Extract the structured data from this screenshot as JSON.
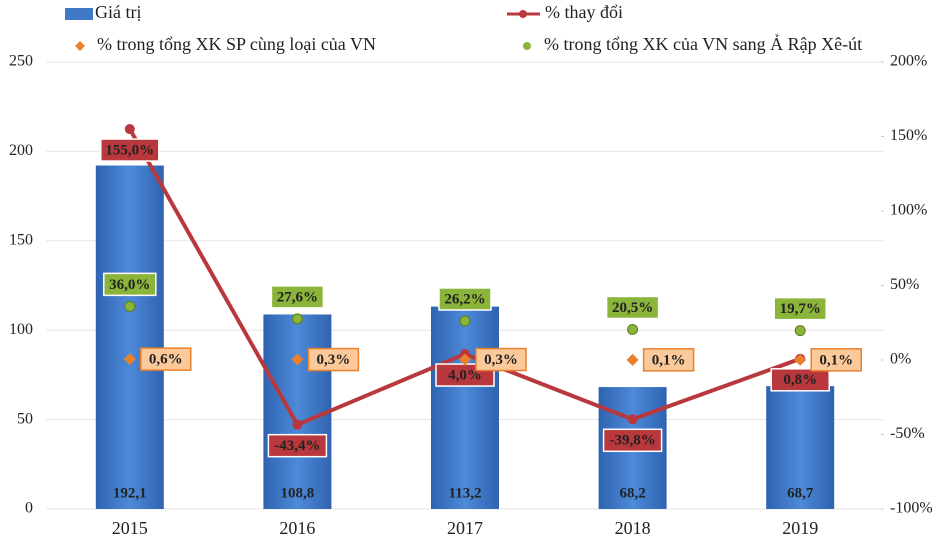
{
  "chart_data": {
    "type": "bar",
    "categories": [
      "2015",
      "2016",
      "2017",
      "2018",
      "2019"
    ],
    "ylim": [
      0,
      250
    ],
    "yticks": [
      0,
      50,
      100,
      150,
      200,
      250
    ],
    "y2lim": [
      -100,
      200
    ],
    "y2ticks": [
      {
        "value": -100,
        "label": "-100%"
      },
      {
        "value": -50,
        "label": "-50%"
      },
      {
        "value": 0,
        "label": "0%"
      },
      {
        "value": 50,
        "label": "50%"
      },
      {
        "value": 100,
        "label": "100%"
      },
      {
        "value": 150,
        "label": "150%"
      },
      {
        "value": 200,
        "label": "200%"
      }
    ],
    "series": [
      {
        "name": "Giá trị",
        "type": "bar",
        "color": "#3f78c8",
        "values": [
          192.1,
          108.8,
          113.2,
          68.2,
          68.7
        ],
        "value_labels": [
          "192,1",
          "108,8",
          "113,2",
          "68,2",
          "68,7"
        ]
      },
      {
        "name": "% thay đổi",
        "type": "line",
        "axis": "y2",
        "color": "#b8383d",
        "values": [
          155.0,
          -43.4,
          4.0,
          -39.8,
          0.8
        ],
        "value_labels": [
          "155,0%",
          "-43,4%",
          "4,0%",
          "-39,8%",
          "0,8%"
        ]
      },
      {
        "name": "% trong tổng XK SP cùng loại của VN",
        "type": "diamond",
        "axis": "y2",
        "color": "#e9812c",
        "values": [
          0.6,
          0.3,
          0.3,
          0.1,
          0.1
        ],
        "value_labels": [
          "0,6%",
          "0,3%",
          "0,3%",
          "0,1%",
          "0,1%"
        ]
      },
      {
        "name": "% trong tổng XK của VN sang Ả Rập Xê-út",
        "type": "dot",
        "axis": "y2",
        "color": "#8ab43a",
        "values": [
          36.0,
          27.6,
          26.2,
          20.5,
          19.7
        ],
        "value_labels": [
          "36,0%",
          "27,6%",
          "26,2%",
          "20,5%",
          "19,7%"
        ]
      }
    ]
  }
}
